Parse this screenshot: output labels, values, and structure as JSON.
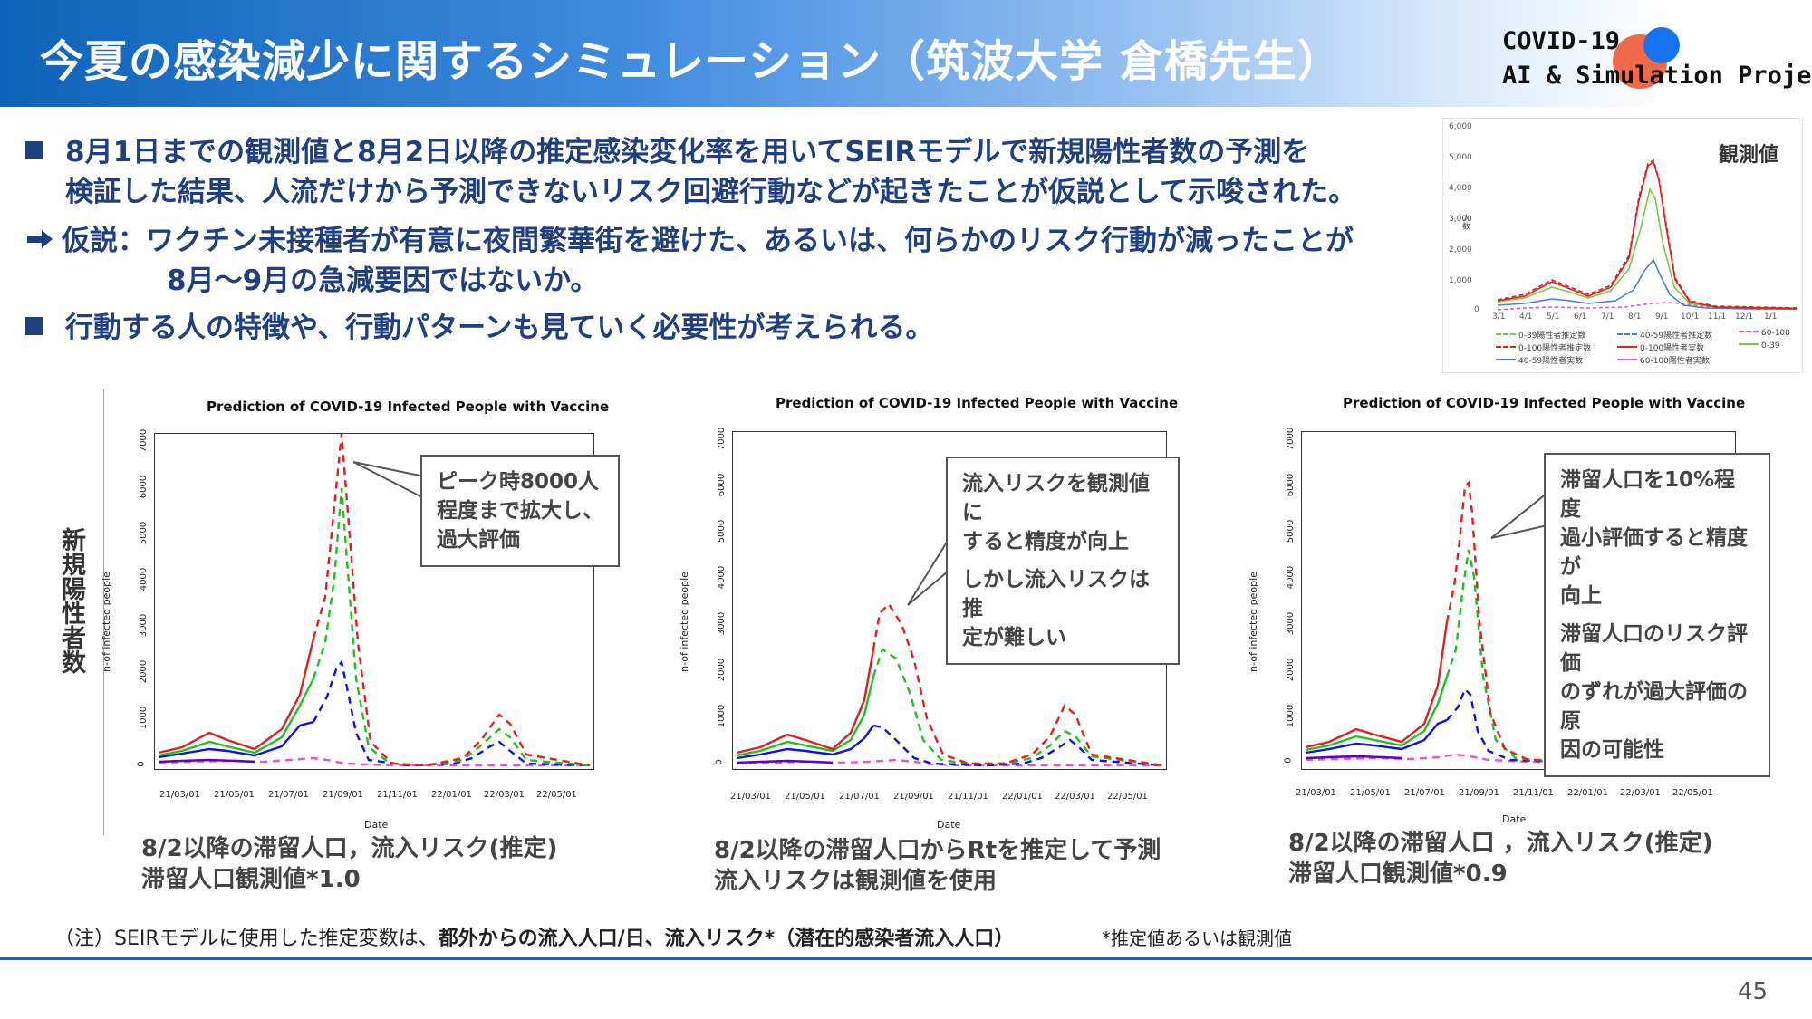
{
  "header": {
    "title": "今夏の感染減少に関するシミュレーション（筑波大学 倉橋先生）",
    "logo_line1": "COVID-19",
    "logo_line2": "AI & Simulation Project"
  },
  "bullets": [
    {
      "marker": "square",
      "text": "8月1日までの観測値と8月2日以降の推定感染変化率を用いてSEIRモデルで新規陽性者数の予測を"
    },
    {
      "marker": "none",
      "text": "検証した結果、人流だけから予測できないリスク回避行動などが起きたことが仮説として示唆された。"
    },
    {
      "marker": "arrow",
      "text": "仮説：ワクチン未接種者が有意に夜間繁華街を避けた、あるいは、何らかのリスク行動が減ったことが"
    },
    {
      "marker": "none",
      "text": "8月～9月の急減要因ではないか。"
    },
    {
      "marker": "square",
      "text": "行動する人の特徴や、行動パターンも見ていく必要性が考えられる。"
    }
  ],
  "mini_chart": {
    "corner_label": "観測値",
    "y_ticks": [
      "6,000",
      "5,000",
      "4,000",
      "3,000",
      "2,000",
      "1,000",
      "0"
    ],
    "y_axis_label": "人数",
    "x_ticks": [
      "3/1",
      "4/1",
      "5/1",
      "6/1",
      "7/1",
      "8/1",
      "9/1",
      "10/1",
      "11/1",
      "12/1",
      "1/1"
    ],
    "legend": [
      {
        "label": "0-39陽性者推定数",
        "color": "#7ac943",
        "style": "dashed"
      },
      {
        "label": "40-59陽性者推定数",
        "color": "#4a7fd4",
        "style": "dashed"
      },
      {
        "label": "60-100",
        "color": "#e055d0",
        "style": "dashed"
      },
      {
        "label": "0-100陽性者推定数",
        "color": "#e02020",
        "style": "dashed"
      },
      {
        "label": "0-100陽性者実数",
        "color": "#e02020",
        "style": "solid"
      },
      {
        "label": "0-39",
        "color": "#7ac943",
        "style": "solid"
      },
      {
        "label": "40-59陽性者実数",
        "color": "#4a7fd4",
        "style": "solid"
      },
      {
        "label": "60-100陽性者実数",
        "color": "#e055d0",
        "style": "solid"
      }
    ],
    "colors": {
      "red": "#e02020",
      "green": "#7ac943",
      "blue": "#4a7fd4",
      "magenta": "#e055d0"
    }
  },
  "side_label": "新規陽性者数",
  "panels": [
    {
      "title": "Prediction of COVID-19 Infected People with Vaccine",
      "y_ticks": [
        "7000",
        "6000",
        "5000",
        "4000",
        "3000",
        "2000",
        "1000",
        "0"
      ],
      "x_ticks": [
        "21/03/01",
        "21/05/01",
        "21/07/01",
        "21/09/01",
        "21/11/01",
        "22/01/01",
        "22/03/01",
        "22/05/01"
      ],
      "xlabel": "Date",
      "ylabel": "n-of infected people",
      "callout": [
        "ピーク時8000人",
        "程度まで拡大し、",
        "過大評価"
      ],
      "caption": [
        "8/2以降の滞留人口，流入リスク(推定)",
        "滞留人口観測値*1.0"
      ]
    },
    {
      "title": "Prediction of COVID-19 Infected People with Vaccine",
      "y_ticks": [
        "7000",
        "6000",
        "5000",
        "4000",
        "3000",
        "2000",
        "1000",
        "0"
      ],
      "x_ticks": [
        "21/03/01",
        "21/05/01",
        "21/07/01",
        "21/09/01",
        "21/11/01",
        "22/01/01",
        "22/03/01",
        "22/05/01"
      ],
      "xlabel": "Date",
      "ylabel": "n-of infected people",
      "callout": [
        "流入リスクを観測値に",
        "すると精度が向上",
        "しかし流入リスクは推",
        "定が難しい"
      ],
      "caption": [
        "8/2以降の滞留人口からRtを推定して予測",
        "流入リスクは観測値を使用"
      ]
    },
    {
      "title": "Prediction of COVID-19 Infected People with Vaccine",
      "y_ticks": [
        "7000",
        "6000",
        "5000",
        "4000",
        "3000",
        "2000",
        "1000",
        "0"
      ],
      "x_ticks": [
        "21/03/01",
        "21/05/01",
        "21/07/01",
        "21/09/01",
        "21/11/01",
        "22/01/01",
        "22/03/01",
        "22/05/01"
      ],
      "xlabel": "Date",
      "ylabel": "n-of infected people",
      "callout": [
        "滞留人口を10%程度",
        "過小評価すると精度が",
        "向上",
        "滞留人口のリスク評価",
        "のずれが過大評価の原",
        "因の可能性"
      ],
      "caption": [
        "8/2以降の滞留人口 ，流入リスク(推定)",
        "滞留人口観測値*0.9"
      ]
    }
  ],
  "note": {
    "prefix": "（注）SEIRモデルに使用した推定変数は、",
    "bold": "都外からの流入人口/日、流入リスク*（潜在的感染者流入人口）",
    "right": "*推定値あるいは観測値"
  },
  "page_number": "45"
}
